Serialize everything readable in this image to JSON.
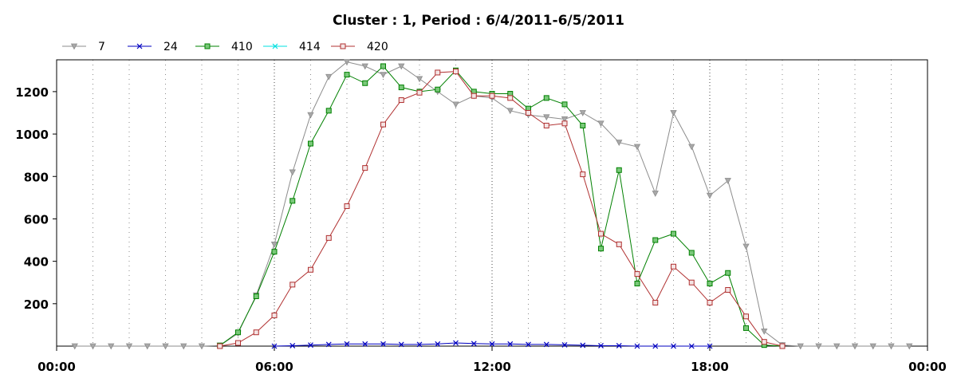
{
  "chart_data": {
    "type": "line",
    "title": "Cluster : 1, Period : 6/4/2011-6/5/2011",
    "xlabel": "",
    "ylabel": "",
    "x_range_hours": [
      0,
      24
    ],
    "x_ticks": [
      {
        "hour": 0,
        "label": "00:00"
      },
      {
        "hour": 6,
        "label": "06:00"
      },
      {
        "hour": 12,
        "label": "12:00"
      },
      {
        "hour": 18,
        "label": "18:00"
      },
      {
        "hour": 24,
        "label": "00:00"
      }
    ],
    "ylim": [
      0,
      1350
    ],
    "y_ticks": [
      200,
      400,
      600,
      800,
      1000,
      1200
    ],
    "grid": "dotted vertical lines every hour",
    "legend_position": "top-left",
    "series": [
      {
        "name": "7",
        "color": "#8c8c8c",
        "marker": "triangle-down",
        "points": [
          [
            0.5,
            0
          ],
          [
            1,
            0
          ],
          [
            1.5,
            0
          ],
          [
            2,
            0
          ],
          [
            2.5,
            0
          ],
          [
            3,
            0
          ],
          [
            3.5,
            0
          ],
          [
            4,
            0
          ],
          [
            4.5,
            3
          ],
          [
            5,
            60
          ],
          [
            5.5,
            240
          ],
          [
            6,
            480
          ],
          [
            6.5,
            820
          ],
          [
            7,
            1090
          ],
          [
            7.5,
            1270
          ],
          [
            8,
            1340
          ],
          [
            8.5,
            1320
          ],
          [
            9,
            1280
          ],
          [
            9.5,
            1320
          ],
          [
            10,
            1260
          ],
          [
            10.5,
            1200
          ],
          [
            11,
            1140
          ],
          [
            11.5,
            1180
          ],
          [
            12,
            1170
          ],
          [
            12.5,
            1110
          ],
          [
            13,
            1090
          ],
          [
            13.5,
            1080
          ],
          [
            14,
            1070
          ],
          [
            14.5,
            1100
          ],
          [
            15,
            1050
          ],
          [
            15.5,
            960
          ],
          [
            16,
            940
          ],
          [
            16.5,
            720
          ],
          [
            17,
            1100
          ],
          [
            17.5,
            940
          ],
          [
            18,
            710
          ],
          [
            18.5,
            780
          ],
          [
            19,
            470
          ],
          [
            19.5,
            70
          ],
          [
            20,
            5
          ],
          [
            20.5,
            0
          ],
          [
            21,
            0
          ],
          [
            21.5,
            0
          ],
          [
            22,
            0
          ],
          [
            22.5,
            0
          ],
          [
            23,
            0
          ],
          [
            23.5,
            0
          ]
        ]
      },
      {
        "name": "24",
        "color": "#0000c0",
        "marker": "x",
        "points": [
          [
            6,
            0
          ],
          [
            6.5,
            2
          ],
          [
            7,
            5
          ],
          [
            7.5,
            8
          ],
          [
            8,
            10
          ],
          [
            8.5,
            10
          ],
          [
            9,
            10
          ],
          [
            9.5,
            8
          ],
          [
            10,
            8
          ],
          [
            10.5,
            10
          ],
          [
            11,
            15
          ],
          [
            11.5,
            12
          ],
          [
            12,
            10
          ],
          [
            12.5,
            10
          ],
          [
            13,
            8
          ],
          [
            13.5,
            8
          ],
          [
            14,
            6
          ],
          [
            14.5,
            4
          ],
          [
            15,
            2
          ],
          [
            15.5,
            2
          ],
          [
            16,
            0
          ],
          [
            16.5,
            0
          ],
          [
            17,
            0
          ],
          [
            17.5,
            0
          ],
          [
            18,
            0
          ]
        ]
      },
      {
        "name": "410",
        "color": "#008000",
        "marker": "square",
        "points": [
          [
            4.5,
            3
          ],
          [
            5,
            65
          ],
          [
            5.5,
            235
          ],
          [
            6,
            445
          ],
          [
            6.5,
            685
          ],
          [
            7,
            955
          ],
          [
            7.5,
            1110
          ],
          [
            8,
            1280
          ],
          [
            8.5,
            1240
          ],
          [
            9,
            1320
          ],
          [
            9.5,
            1220
          ],
          [
            10,
            1200
          ],
          [
            10.5,
            1210
          ],
          [
            11,
            1300
          ],
          [
            11.5,
            1200
          ],
          [
            12,
            1190
          ],
          [
            12.5,
            1190
          ],
          [
            13,
            1120
          ],
          [
            13.5,
            1170
          ],
          [
            14,
            1140
          ],
          [
            14.5,
            1040
          ],
          [
            15,
            460
          ],
          [
            15.5,
            830
          ],
          [
            16,
            295
          ],
          [
            16.5,
            500
          ],
          [
            17,
            530
          ],
          [
            17.5,
            440
          ],
          [
            18,
            295
          ],
          [
            18.5,
            345
          ],
          [
            19,
            85
          ],
          [
            19.5,
            5
          ],
          [
            20,
            0
          ]
        ]
      },
      {
        "name": "414",
        "color": "#00e0e0",
        "marker": "x",
        "points": []
      },
      {
        "name": "420",
        "color": "#b03030",
        "marker": "square",
        "points": [
          [
            4.5,
            0
          ],
          [
            5,
            15
          ],
          [
            5.5,
            65
          ],
          [
            6,
            145
          ],
          [
            6.5,
            290
          ],
          [
            7,
            360
          ],
          [
            7.5,
            510
          ],
          [
            8,
            660
          ],
          [
            8.5,
            840
          ],
          [
            9,
            1045
          ],
          [
            9.5,
            1160
          ],
          [
            10,
            1195
          ],
          [
            10.5,
            1290
          ],
          [
            11,
            1295
          ],
          [
            11.5,
            1180
          ],
          [
            12,
            1180
          ],
          [
            12.5,
            1170
          ],
          [
            13,
            1100
          ],
          [
            13.5,
            1040
          ],
          [
            14,
            1050
          ],
          [
            14.5,
            810
          ],
          [
            15,
            530
          ],
          [
            15.5,
            480
          ],
          [
            16,
            340
          ],
          [
            16.5,
            205
          ],
          [
            17,
            375
          ],
          [
            17.5,
            300
          ],
          [
            18,
            205
          ],
          [
            18.5,
            265
          ],
          [
            19,
            140
          ],
          [
            19.5,
            20
          ],
          [
            20,
            0
          ]
        ]
      }
    ]
  }
}
